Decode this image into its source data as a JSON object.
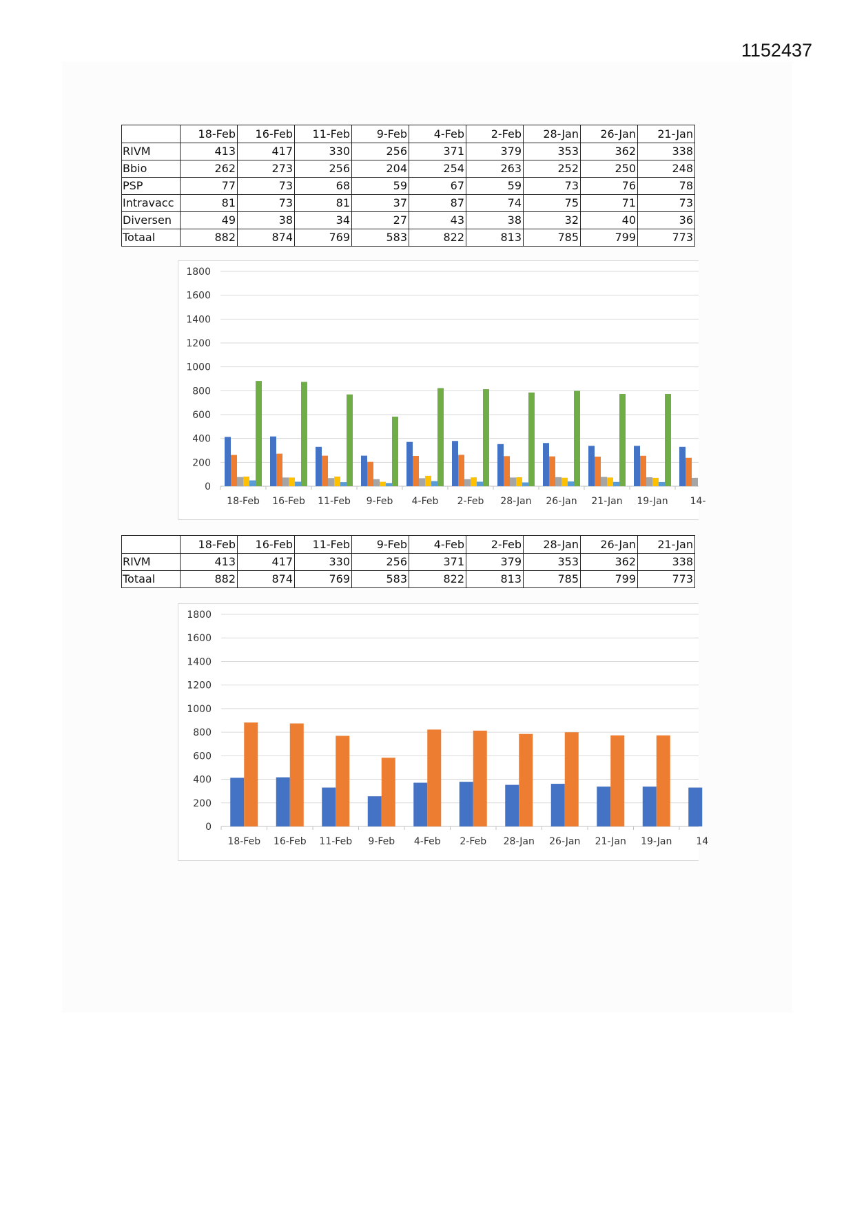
{
  "document": {
    "number": "1152437"
  },
  "table1": {
    "columns": [
      "18-Feb",
      "16-Feb",
      "11-Feb",
      "9-Feb",
      "4-Feb",
      "2-Feb",
      "28-Jan",
      "26-Jan",
      "21-Jan"
    ],
    "rows": [
      {
        "label": "RIVM",
        "values": [
          "413",
          "417",
          "330",
          "256",
          "371",
          "379",
          "353",
          "362",
          "338"
        ]
      },
      {
        "label": "Bbio",
        "values": [
          "262",
          "273",
          "256",
          "204",
          "254",
          "263",
          "252",
          "250",
          "248"
        ]
      },
      {
        "label": "PSP",
        "values": [
          "77",
          "73",
          "68",
          "59",
          "67",
          "59",
          "73",
          "76",
          "78"
        ]
      },
      {
        "label": "Intravacc",
        "values": [
          "81",
          "73",
          "81",
          "37",
          "87",
          "74",
          "75",
          "71",
          "73"
        ]
      },
      {
        "label": "Diversen",
        "values": [
          "49",
          "38",
          "34",
          "27",
          "43",
          "38",
          "32",
          "40",
          "36"
        ]
      },
      {
        "label": "Totaal",
        "values": [
          "882",
          "874",
          "769",
          "583",
          "822",
          "813",
          "785",
          "799",
          "773"
        ]
      }
    ]
  },
  "table2": {
    "columns": [
      "18-Feb",
      "16-Feb",
      "11-Feb",
      "9-Feb",
      "4-Feb",
      "2-Feb",
      "28-Jan",
      "26-Jan",
      "21-Jan"
    ],
    "rows": [
      {
        "label": "RIVM",
        "values": [
          "413",
          "417",
          "330",
          "256",
          "371",
          "379",
          "353",
          "362",
          "338"
        ]
      },
      {
        "label": "Totaal",
        "values": [
          "882",
          "874",
          "769",
          "583",
          "822",
          "813",
          "785",
          "799",
          "773"
        ]
      }
    ]
  },
  "chart_data": [
    {
      "type": "bar",
      "title": "",
      "xlabel": "",
      "ylabel": "",
      "ylim": [
        0,
        1800
      ],
      "yticks": [
        0,
        200,
        400,
        600,
        800,
        1000,
        1200,
        1400,
        1600,
        1800
      ],
      "grid": true,
      "categories": [
        "18-Feb",
        "16-Feb",
        "11-Feb",
        "9-Feb",
        "4-Feb",
        "2-Feb",
        "28-Jan",
        "26-Jan",
        "21-Jan",
        "19-Jan",
        "14-"
      ],
      "series": [
        {
          "name": "RIVM",
          "color": "#4472c4",
          "values": [
            413,
            417,
            330,
            256,
            371,
            379,
            353,
            362,
            338,
            338,
            330
          ]
        },
        {
          "name": "Bbio",
          "color": "#ed7d31",
          "values": [
            262,
            273,
            256,
            204,
            254,
            263,
            252,
            250,
            248,
            255,
            238
          ]
        },
        {
          "name": "PSP",
          "color": "#a5a5a5",
          "values": [
            77,
            73,
            68,
            59,
            67,
            59,
            73,
            76,
            78,
            75,
            70
          ]
        },
        {
          "name": "Intravacc",
          "color": "#ffc000",
          "values": [
            81,
            73,
            81,
            37,
            87,
            74,
            75,
            71,
            73,
            70,
            0
          ]
        },
        {
          "name": "Diversen",
          "color": "#5b9bd5",
          "values": [
            49,
            38,
            34,
            27,
            43,
            38,
            32,
            40,
            36,
            35,
            0
          ]
        },
        {
          "name": "Totaal",
          "color": "#70ad47",
          "values": [
            882,
            874,
            769,
            583,
            822,
            813,
            785,
            799,
            773,
            773,
            0
          ]
        }
      ]
    },
    {
      "type": "bar",
      "title": "",
      "xlabel": "",
      "ylabel": "",
      "ylim": [
        0,
        1800
      ],
      "yticks": [
        0,
        200,
        400,
        600,
        800,
        1000,
        1200,
        1400,
        1600,
        1800
      ],
      "grid": true,
      "categories": [
        "18-Feb",
        "16-Feb",
        "11-Feb",
        "9-Feb",
        "4-Feb",
        "2-Feb",
        "28-Jan",
        "26-Jan",
        "21-Jan",
        "19-Jan",
        "14"
      ],
      "series": [
        {
          "name": "RIVM",
          "color": "#4472c4",
          "values": [
            413,
            417,
            330,
            256,
            371,
            379,
            353,
            362,
            338,
            338,
            330
          ]
        },
        {
          "name": "Totaal",
          "color": "#ed7d31",
          "values": [
            882,
            874,
            769,
            583,
            822,
            813,
            785,
            799,
            773,
            773,
            0
          ]
        }
      ]
    }
  ]
}
